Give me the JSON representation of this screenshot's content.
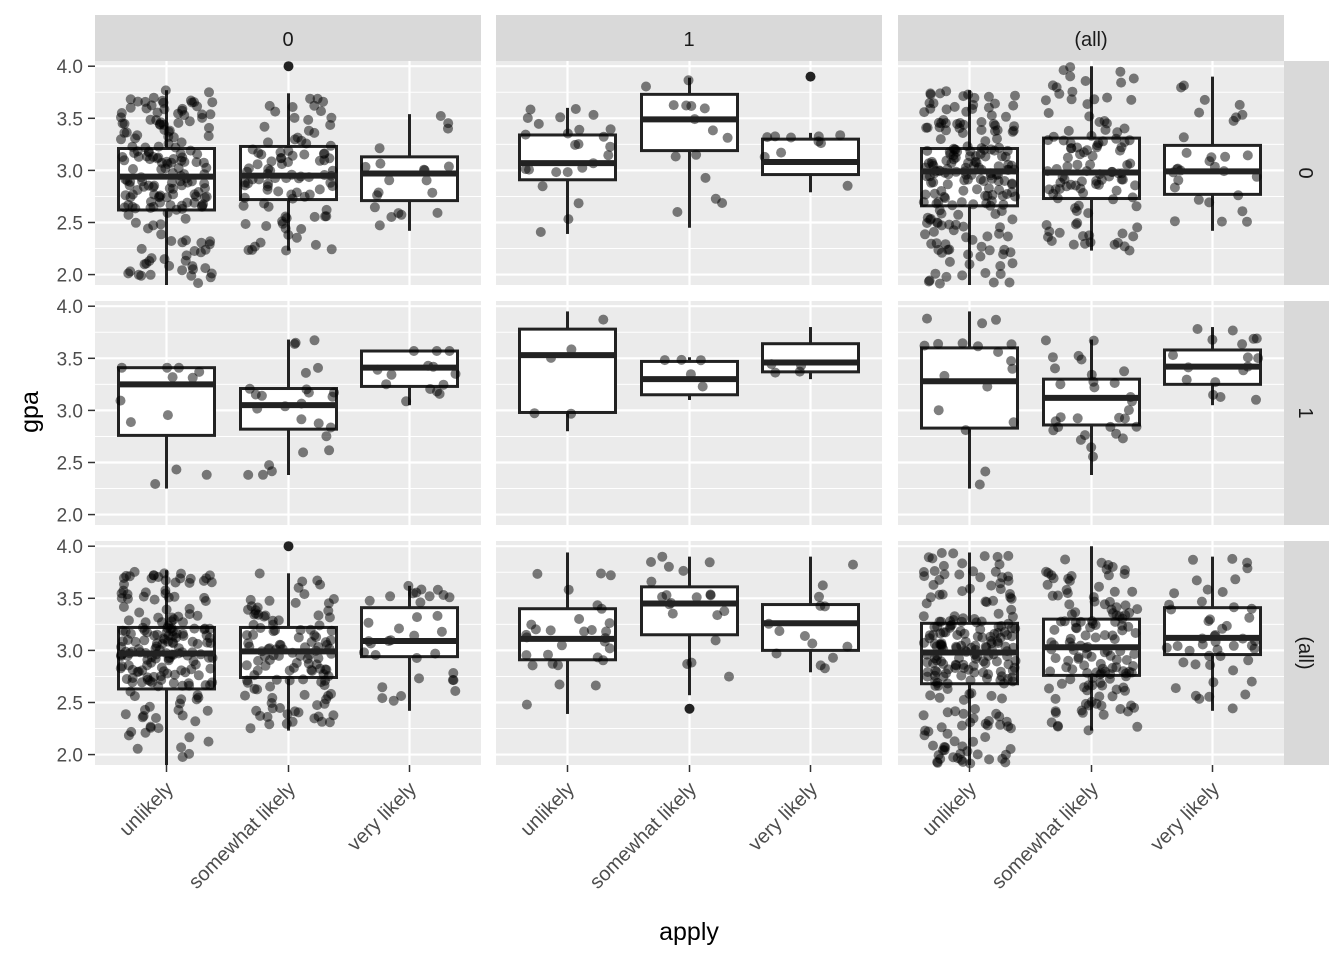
{
  "chart_data": {
    "type": "box",
    "title": "",
    "xlabel": "apply",
    "ylabel": "gpa",
    "categories": [
      "unlikely",
      "somewhat likely",
      "very likely"
    ],
    "col_facets": [
      "0",
      "1",
      "(all)"
    ],
    "row_facets": [
      "0",
      "1",
      "(all)"
    ],
    "ylim": [
      1.9,
      4.05
    ],
    "yticks": [
      "2.0",
      "2.5",
      "3.0",
      "3.5",
      "4.0"
    ],
    "grid": true,
    "jitter_points": true,
    "panels": [
      {
        "col": "0",
        "row": "0",
        "boxes": [
          {
            "x": "unlikely",
            "whisker_low": 1.9,
            "q1": 2.62,
            "median": 2.94,
            "q3": 3.21,
            "whisker_high": 3.77,
            "outliers": [],
            "n_points": 180
          },
          {
            "x": "somewhat likely",
            "whisker_low": 2.23,
            "q1": 2.72,
            "median": 2.95,
            "q3": 3.23,
            "whisker_high": 3.74,
            "outliers": [
              4.0
            ],
            "n_points": 95
          },
          {
            "x": "very likely",
            "whisker_low": 2.42,
            "q1": 2.71,
            "median": 2.97,
            "q3": 3.13,
            "whisker_high": 3.54,
            "outliers": [],
            "n_points": 20
          }
        ]
      },
      {
        "col": "1",
        "row": "0",
        "boxes": [
          {
            "x": "unlikely",
            "whisker_low": 2.39,
            "q1": 2.91,
            "median": 3.07,
            "q3": 3.34,
            "whisker_high": 3.6,
            "outliers": [],
            "n_points": 25
          },
          {
            "x": "somewhat likely",
            "whisker_low": 2.45,
            "q1": 3.19,
            "median": 3.49,
            "q3": 3.73,
            "whisker_high": 3.89,
            "outliers": [],
            "n_points": 15
          },
          {
            "x": "very likely",
            "whisker_low": 2.79,
            "q1": 2.96,
            "median": 3.08,
            "q3": 3.3,
            "whisker_high": 3.36,
            "outliers": [
              3.9
            ],
            "n_points": 10
          }
        ]
      },
      {
        "col": "(all)",
        "row": "0",
        "boxes": [
          {
            "x": "unlikely",
            "whisker_low": 1.9,
            "q1": 2.66,
            "median": 2.99,
            "q3": 3.21,
            "whisker_high": 3.77,
            "outliers": [],
            "n_points": 200
          },
          {
            "x": "somewhat likely",
            "whisker_low": 2.23,
            "q1": 2.73,
            "median": 2.98,
            "q3": 3.31,
            "whisker_high": 4.0,
            "outliers": [],
            "n_points": 110
          },
          {
            "x": "very likely",
            "whisker_low": 2.42,
            "q1": 2.77,
            "median": 2.99,
            "q3": 3.24,
            "whisker_high": 3.9,
            "outliers": [],
            "n_points": 30
          }
        ]
      },
      {
        "col": "0",
        "row": "1",
        "boxes": [
          {
            "x": "unlikely",
            "whisker_low": 2.25,
            "q1": 2.76,
            "median": 3.25,
            "q3": 3.41,
            "whisker_high": 3.41,
            "outliers": [],
            "n_points": 12
          },
          {
            "x": "somewhat likely",
            "whisker_low": 2.38,
            "q1": 2.82,
            "median": 3.05,
            "q3": 3.21,
            "whisker_high": 3.68,
            "outliers": [],
            "n_points": 25
          },
          {
            "x": "very likely",
            "whisker_low": 3.05,
            "q1": 3.23,
            "median": 3.41,
            "q3": 3.57,
            "whisker_high": 3.57,
            "outliers": [],
            "n_points": 14
          }
        ]
      },
      {
        "col": "1",
        "row": "1",
        "boxes": [
          {
            "x": "unlikely",
            "whisker_low": 2.8,
            "q1": 2.98,
            "median": 3.53,
            "q3": 3.78,
            "whisker_high": 3.95,
            "outliers": [],
            "n_points": 5
          },
          {
            "x": "somewhat likely",
            "whisker_low": 3.1,
            "q1": 3.15,
            "median": 3.3,
            "q3": 3.47,
            "whisker_high": 3.51,
            "outliers": [],
            "n_points": 5
          },
          {
            "x": "very likely",
            "whisker_low": 3.3,
            "q1": 3.37,
            "median": 3.46,
            "q3": 3.64,
            "whisker_high": 3.8,
            "outliers": [],
            "n_points": 4
          }
        ]
      },
      {
        "col": "(all)",
        "row": "1",
        "boxes": [
          {
            "x": "unlikely",
            "whisker_low": 2.25,
            "q1": 2.83,
            "median": 3.28,
            "q3": 3.6,
            "whisker_high": 3.95,
            "outliers": [],
            "n_points": 18
          },
          {
            "x": "somewhat likely",
            "whisker_low": 2.38,
            "q1": 2.86,
            "median": 3.12,
            "q3": 3.3,
            "whisker_high": 3.68,
            "outliers": [],
            "n_points": 30
          },
          {
            "x": "very likely",
            "whisker_low": 3.05,
            "q1": 3.25,
            "median": 3.42,
            "q3": 3.58,
            "whisker_high": 3.8,
            "outliers": [],
            "n_points": 17
          }
        ]
      },
      {
        "col": "0",
        "row": "(all)",
        "boxes": [
          {
            "x": "unlikely",
            "whisker_low": 1.9,
            "q1": 2.63,
            "median": 2.97,
            "q3": 3.22,
            "whisker_high": 3.77,
            "outliers": [],
            "n_points": 190
          },
          {
            "x": "somewhat likely",
            "whisker_low": 2.23,
            "q1": 2.74,
            "median": 2.99,
            "q3": 3.22,
            "whisker_high": 3.74,
            "outliers": [
              4.0
            ],
            "n_points": 120
          },
          {
            "x": "very likely",
            "whisker_low": 2.42,
            "q1": 2.94,
            "median": 3.09,
            "q3": 3.41,
            "whisker_high": 3.62,
            "outliers": [],
            "n_points": 34
          }
        ]
      },
      {
        "col": "1",
        "row": "(all)",
        "boxes": [
          {
            "x": "unlikely",
            "whisker_low": 2.39,
            "q1": 2.91,
            "median": 3.11,
            "q3": 3.4,
            "whisker_high": 3.94,
            "outliers": [],
            "n_points": 30
          },
          {
            "x": "somewhat likely",
            "whisker_low": 2.57,
            "q1": 3.15,
            "median": 3.45,
            "q3": 3.61,
            "whisker_high": 3.9,
            "outliers": [
              2.44
            ],
            "n_points": 20
          },
          {
            "x": "very likely",
            "whisker_low": 2.79,
            "q1": 3.0,
            "median": 3.26,
            "q3": 3.44,
            "whisker_high": 3.9,
            "outliers": [],
            "n_points": 14
          }
        ]
      },
      {
        "col": "(all)",
        "row": "(all)",
        "boxes": [
          {
            "x": "unlikely",
            "whisker_low": 1.9,
            "q1": 2.68,
            "median": 2.98,
            "q3": 3.26,
            "whisker_high": 3.94,
            "outliers": [],
            "n_points": 220
          },
          {
            "x": "somewhat likely",
            "whisker_low": 2.23,
            "q1": 2.76,
            "median": 3.03,
            "q3": 3.3,
            "whisker_high": 4.0,
            "outliers": [],
            "n_points": 140
          },
          {
            "x": "very likely",
            "whisker_low": 2.42,
            "q1": 2.96,
            "median": 3.12,
            "q3": 3.41,
            "whisker_high": 3.9,
            "outliers": [],
            "n_points": 48
          }
        ]
      }
    ]
  }
}
